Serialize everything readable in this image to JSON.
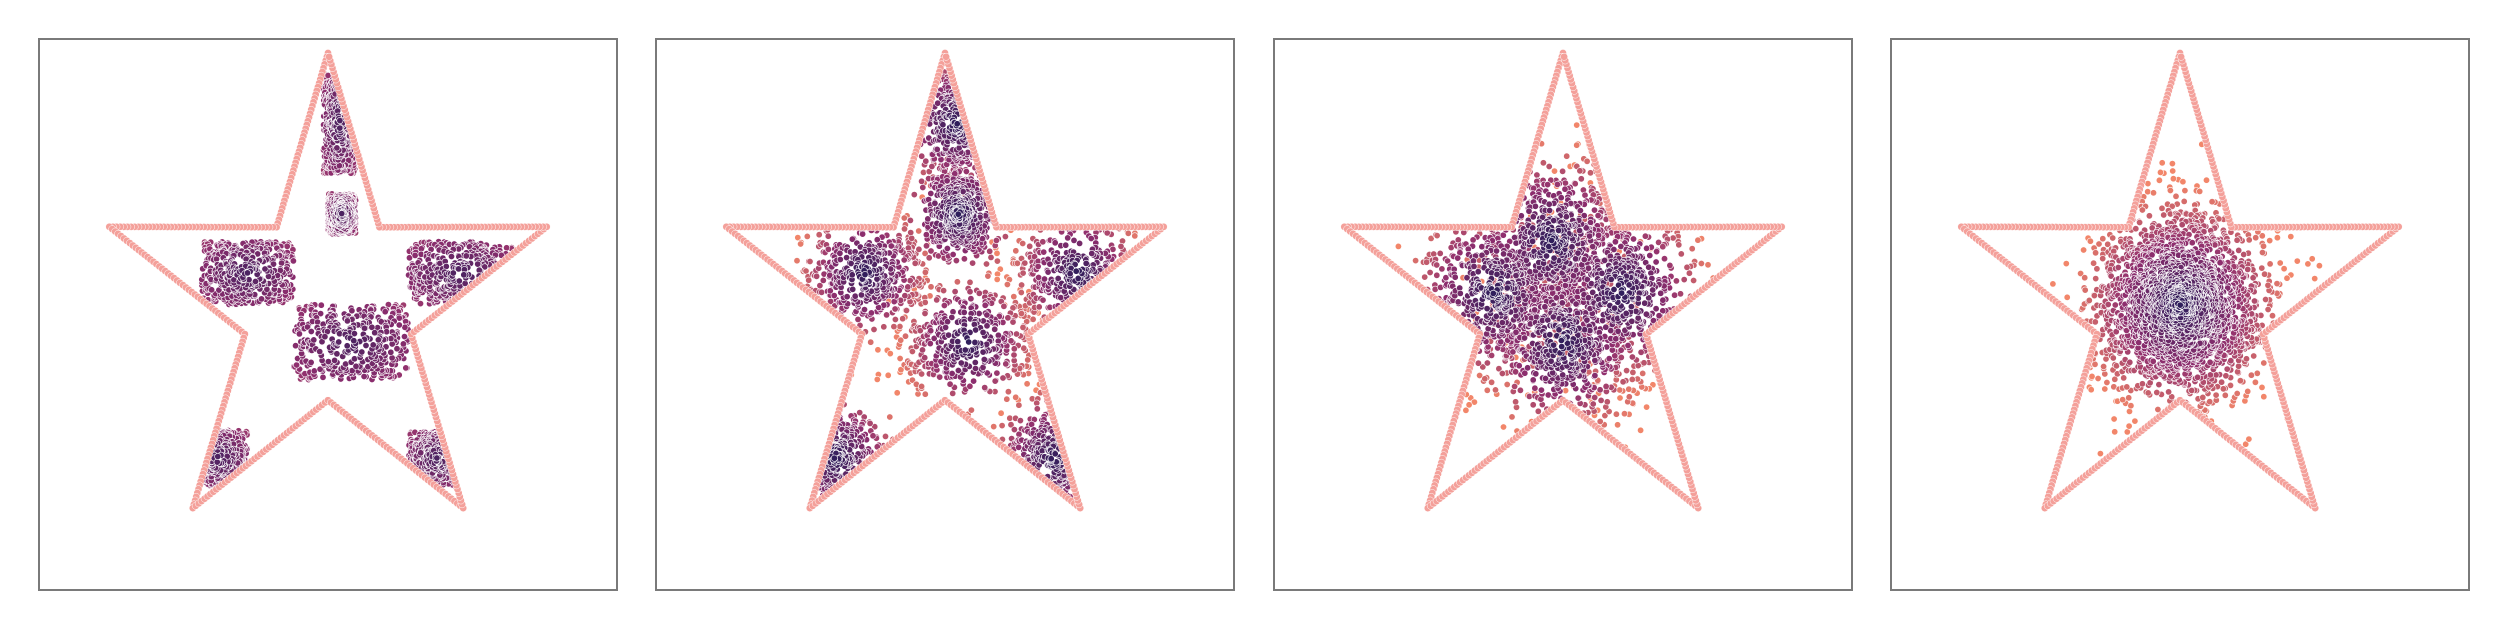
{
  "chart_data": [
    {
      "type": "scatter",
      "title": "",
      "xlabel": "",
      "ylabel": "",
      "grid": false,
      "legend": "none",
      "description_shape": "star",
      "diffusion_level": 0.0,
      "distribution": "checkerboard",
      "star": {
        "center": [
          0.0,
          0.0
        ],
        "outer_radius": 1.0,
        "inner_radius": 0.38,
        "rotation_deg": 90
      },
      "xlim": [
        -1.0,
        1.0
      ],
      "ylim": [
        -0.9,
        0.98
      ],
      "checker_cells": [
        {
          "x": [
            -0.55,
            -0.15
          ],
          "y": [
            0.0,
            0.25
          ]
        },
        {
          "x": [
            0.35,
            0.8
          ],
          "y": [
            0.0,
            0.25
          ]
        },
        {
          "x": [
            -0.15,
            0.35
          ],
          "y": [
            -0.3,
            0.0
          ]
        },
        {
          "x": [
            -0.6,
            -0.35
          ],
          "y": [
            -0.72,
            -0.5
          ]
        },
        {
          "x": [
            0.35,
            0.6
          ],
          "y": [
            -0.72,
            -0.5
          ]
        },
        {
          "x": [
            -0.02,
            0.12
          ],
          "y": [
            0.52,
            0.92
          ]
        },
        {
          "x": [
            0.0,
            0.12
          ],
          "y": [
            0.28,
            0.44
          ]
        }
      ],
      "n_points": 2400
    },
    {
      "type": "scatter",
      "title": "",
      "xlabel": "",
      "ylabel": "",
      "grid": false,
      "legend": "none",
      "description_shape": "star",
      "diffusion_level": 0.33,
      "distribution": "checkerboard-diffused",
      "star": {
        "center": [
          0.0,
          0.0
        ],
        "outer_radius": 1.0,
        "inner_radius": 0.38,
        "rotation_deg": 90
      },
      "xlim": [
        -1.0,
        1.0
      ],
      "ylim": [
        -0.9,
        0.98
      ],
      "n_points": 2400
    },
    {
      "type": "scatter",
      "title": "",
      "xlabel": "",
      "ylabel": "",
      "grid": false,
      "legend": "none",
      "description_shape": "star",
      "diffusion_level": 0.66,
      "distribution": "blurred",
      "star": {
        "center": [
          0.0,
          0.0
        ],
        "outer_radius": 1.0,
        "inner_radius": 0.38,
        "rotation_deg": 90
      },
      "xlim": [
        -1.0,
        1.0
      ],
      "ylim": [
        -0.9,
        0.98
      ],
      "n_points": 2400
    },
    {
      "type": "scatter",
      "title": "",
      "xlabel": "",
      "ylabel": "",
      "grid": false,
      "legend": "none",
      "description_shape": "star",
      "diffusion_level": 1.0,
      "distribution": "gaussian",
      "star": {
        "center": [
          0.0,
          0.0
        ],
        "outer_radius": 1.0,
        "inner_radius": 0.38,
        "rotation_deg": 90
      },
      "xlim": [
        -1.0,
        1.0
      ],
      "ylim": [
        -0.9,
        0.98
      ],
      "n_points": 2400
    }
  ],
  "colors": {
    "boundary": "#f4a09a",
    "dense": "#2d1e5b",
    "mid": "#8e2e6e",
    "sparse": "#f2866a",
    "frame": "#7a7a7a"
  }
}
